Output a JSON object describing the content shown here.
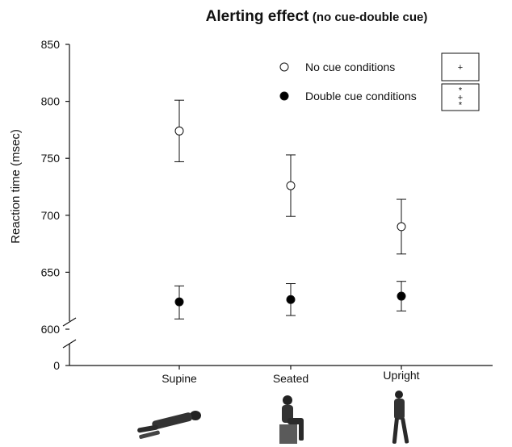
{
  "chart_data": {
    "type": "scatter",
    "title": "Alerting effect",
    "subtitle": "(no cue-double cue)",
    "ylabel": "Reaction time (msec)",
    "xlabel": "",
    "categories": [
      "Supine",
      "Seated",
      "Upright"
    ],
    "yticks": [
      "0",
      "600",
      "650",
      "700",
      "750",
      "800",
      "850"
    ],
    "ylim": [
      600,
      850
    ],
    "axis_break": true,
    "grid": false,
    "legend_position": "top-right",
    "series": [
      {
        "name": "No cue conditions",
        "marker": "open-circle",
        "values": [
          774,
          726,
          690
        ],
        "error_low": [
          747,
          699,
          666
        ],
        "error_high": [
          801,
          753,
          714
        ]
      },
      {
        "name": "Double cue conditions",
        "marker": "filled-circle",
        "values": [
          624,
          626,
          629
        ],
        "error_low": [
          609,
          612,
          616
        ],
        "error_high": [
          638,
          640,
          642
        ]
      }
    ],
    "significance": [
      {
        "series": "No cue conditions",
        "mark": "+"
      },
      {
        "series": "Double cue conditions",
        "mark": "*\n+\n*"
      }
    ],
    "posture_icons": [
      "lying-figure-icon",
      "seated-figure-icon",
      "standing-figure-icon"
    ],
    "colors": {
      "axis": "#111111",
      "marker_fill": "#000000",
      "open_marker_fill": "#ffffff"
    }
  }
}
